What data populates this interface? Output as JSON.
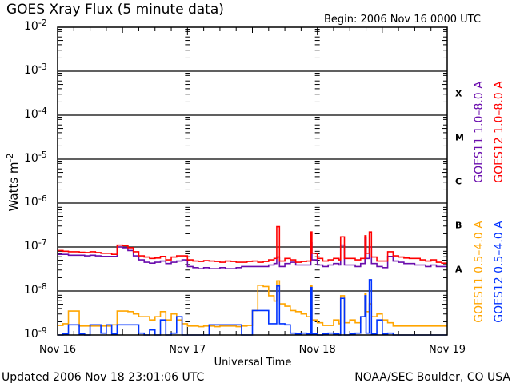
{
  "chart_data": {
    "type": "line",
    "title": "GOES Xray Flux (5 minute data)",
    "begin_label": "Begin:  2006 Nov 16 0000 UTC",
    "xlabel": "Universal Time",
    "ylabel": "Watts m",
    "ylabel_exp": "-2",
    "y_scale": "log",
    "ylim": [
      1e-09,
      0.01
    ],
    "xlim": [
      "Nov 16 00:00",
      "Nov 19 00:00"
    ],
    "grid": "horizontal lines at 1e-3 through 1e-8",
    "x_tick_labels": [
      "Nov 16",
      "Nov 17",
      "Nov 18",
      "Nov 19"
    ],
    "y_ticks": [
      {
        "base": "10",
        "exp": "-2"
      },
      {
        "base": "10",
        "exp": "-3"
      },
      {
        "base": "10",
        "exp": "-4"
      },
      {
        "base": "10",
        "exp": "-5"
      },
      {
        "base": "10",
        "exp": "-6"
      },
      {
        "base": "10",
        "exp": "-7"
      },
      {
        "base": "10",
        "exp": "-8"
      },
      {
        "base": "10",
        "exp": "-9"
      }
    ],
    "flare_classes": [
      "X",
      "M",
      "C",
      "B",
      "A"
    ],
    "x": [
      "Nov 16 00:00",
      "Nov 16 01:00",
      "Nov 16 02:00",
      "Nov 16 03:00",
      "Nov 16 04:00",
      "Nov 16 05:00",
      "Nov 16 06:00",
      "Nov 16 07:00",
      "Nov 16 08:00",
      "Nov 16 09:00",
      "Nov 16 10:00",
      "Nov 16 11:00",
      "Nov 16 12:00",
      "Nov 16 13:00",
      "Nov 16 14:00",
      "Nov 16 15:00",
      "Nov 16 16:00",
      "Nov 16 17:00",
      "Nov 16 18:00",
      "Nov 16 19:00",
      "Nov 16 20:00",
      "Nov 16 21:00",
      "Nov 16 22:00",
      "Nov 16 23:00",
      "Nov 17 00:00",
      "Nov 17 01:00",
      "Nov 17 02:00",
      "Nov 17 03:00",
      "Nov 17 04:00",
      "Nov 17 05:00",
      "Nov 17 06:00",
      "Nov 17 07:00",
      "Nov 17 08:00",
      "Nov 17 09:00",
      "Nov 17 10:00",
      "Nov 17 11:00",
      "Nov 17 12:00",
      "Nov 17 13:00",
      "Nov 17 14:00",
      "Nov 17 15:00",
      "Nov 17 16:00",
      "Nov 17 16:30",
      "Nov 17 17:00",
      "Nov 17 18:00",
      "Nov 17 19:00",
      "Nov 17 20:00",
      "Nov 17 21:00",
      "Nov 17 22:00",
      "Nov 17 22:48",
      "Nov 17 23:00",
      "Nov 18 00:00",
      "Nov 18 01:00",
      "Nov 18 02:00",
      "Nov 18 03:00",
      "Nov 18 04:00",
      "Nov 18 04:18",
      "Nov 18 05:00",
      "Nov 18 06:00",
      "Nov 18 07:00",
      "Nov 18 08:00",
      "Nov 18 08:48",
      "Nov 18 09:00",
      "Nov 18 09:36",
      "Nov 18 10:00",
      "Nov 18 11:00",
      "Nov 18 12:00",
      "Nov 18 13:00",
      "Nov 18 14:00",
      "Nov 18 15:00",
      "Nov 18 16:00",
      "Nov 18 17:00",
      "Nov 18 18:00",
      "Nov 18 19:00",
      "Nov 18 20:00",
      "Nov 18 21:00",
      "Nov 18 22:00",
      "Nov 18 23:00"
    ],
    "series": [
      {
        "name": "GOES11 1.0-8.0 A",
        "color": "#6a0dad",
        "values": [
          6.8e-08,
          6.8e-08,
          6.5e-08,
          6.5e-08,
          6.5e-08,
          6.3e-08,
          6.5e-08,
          6.3e-08,
          6.1e-08,
          6.1e-08,
          6.1e-08,
          1e-07,
          9.6e-08,
          8.3e-08,
          6.3e-08,
          5.1e-08,
          4.5e-08,
          4.3e-08,
          4.5e-08,
          4.8e-08,
          4.2e-08,
          4.5e-08,
          4.8e-08,
          5.1e-08,
          3.6e-08,
          3.4e-08,
          3.2e-08,
          3.4e-08,
          3.2e-08,
          3.2e-08,
          3.4e-08,
          3.2e-08,
          3.2e-08,
          3.4e-08,
          3.6e-08,
          3.6e-08,
          3.6e-08,
          3.6e-08,
          3.6e-08,
          3.9e-08,
          4.2e-08,
          5.9e-08,
          3.6e-08,
          4.2e-08,
          4.5e-08,
          3.9e-08,
          3.9e-08,
          3.9e-08,
          1.25e-07,
          5.1e-08,
          3.9e-08,
          3.6e-08,
          3.9e-08,
          4.2e-08,
          3.9e-08,
          1.1e-07,
          3.9e-08,
          3.9e-08,
          3.6e-08,
          4.2e-08,
          1.6e-07,
          5.5e-08,
          1e-07,
          4.2e-08,
          3.6e-08,
          3.4e-08,
          6.1e-08,
          4.8e-08,
          4.5e-08,
          4.2e-08,
          4.2e-08,
          3.9e-08,
          3.9e-08,
          3.6e-08,
          3.9e-08,
          3.6e-08,
          3.6e-08
        ]
      },
      {
        "name": "GOES12 1.0-8.0 A",
        "color": "#ff0000",
        "values": [
          8.3e-08,
          8e-08,
          7.8e-08,
          7.8e-08,
          7.6e-08,
          7.5e-08,
          7.8e-08,
          7.5e-08,
          7.2e-08,
          7.2e-08,
          6.8e-08,
          1.1e-07,
          1.07e-07,
          9.6e-08,
          7.8e-08,
          6.3e-08,
          5.9e-08,
          5.5e-08,
          5.6e-08,
          6.1e-08,
          5.1e-08,
          5.9e-08,
          6.3e-08,
          6.3e-08,
          5.1e-08,
          4.8e-08,
          4.7e-08,
          4.9e-08,
          4.8e-08,
          4.7e-08,
          4.5e-08,
          4.8e-08,
          4.7e-08,
          4.5e-08,
          4.5e-08,
          4.7e-08,
          4.8e-08,
          4.5e-08,
          4.7e-08,
          5.1e-08,
          5.5e-08,
          2.9e-07,
          4.8e-08,
          5.5e-08,
          5.1e-08,
          4.5e-08,
          4.7e-08,
          4.8e-08,
          2.2e-07,
          7.2e-08,
          5.5e-08,
          4.8e-08,
          5.1e-08,
          5.5e-08,
          5.1e-08,
          1.7e-07,
          5.5e-08,
          5.5e-08,
          5.1e-08,
          5.5e-08,
          1.8e-07,
          7.2e-08,
          2.2e-07,
          5.9e-08,
          4.8e-08,
          4.8e-08,
          7.8e-08,
          6.3e-08,
          5.9e-08,
          5.6e-08,
          5.5e-08,
          5.5e-08,
          5.1e-08,
          4.8e-08,
          5.1e-08,
          4.5e-08,
          4.3e-08
        ]
      },
      {
        "name": "GOES11 0.5-4.0 A",
        "color": "#ffa500",
        "values": [
          1.65e-09,
          1.8e-09,
          3.5e-09,
          3.5e-09,
          1.6e-09,
          1.6e-09,
          1.6e-09,
          1.6e-09,
          1.6e-09,
          1.6e-09,
          1.7e-09,
          3.5e-09,
          3.5e-09,
          3.4e-09,
          3e-09,
          2.6e-09,
          2.6e-09,
          2.2e-09,
          2.6e-09,
          3.4e-09,
          2.2e-09,
          3e-09,
          2.2e-09,
          1.8e-09,
          1.6e-09,
          1.6e-09,
          1.55e-09,
          1.6e-09,
          1.6e-09,
          1.55e-09,
          1.6e-09,
          1.6e-09,
          1.6e-09,
          1.55e-09,
          1.6e-09,
          1.65e-09,
          3.6e-09,
          1.35e-08,
          1.26e-08,
          7.8e-09,
          5.9e-09,
          1.7e-08,
          5.1e-09,
          4.5e-09,
          3.6e-09,
          3.4e-09,
          3e-09,
          2.6e-09,
          1.3e-08,
          2.2e-09,
          1.9e-09,
          1.65e-09,
          1.65e-09,
          2.2e-09,
          1.8e-09,
          7.8e-09,
          1.9e-09,
          2.2e-09,
          1.9e-09,
          2.6e-09,
          8.9e-09,
          3.4e-09,
          5.1e-09,
          2.6e-09,
          3e-09,
          2.2e-09,
          1.9e-09,
          1.6e-09,
          1.6e-09,
          1.6e-09,
          1.6e-09,
          1.6e-09,
          1.6e-09,
          1.6e-09,
          1.6e-09,
          1.6e-09,
          1.6e-09
        ]
      },
      {
        "name": "GOES12 0.5-4.0 A",
        "color": "#0033ff",
        "values": [
          1e-09,
          1.05e-09,
          1.7e-09,
          1.7e-09,
          1.05e-09,
          1e-09,
          1.7e-09,
          1.7e-09,
          1.1e-09,
          1.7e-09,
          1.05e-09,
          1.7e-09,
          1.7e-09,
          1.7e-09,
          1.7e-09,
          1.1e-09,
          1e-09,
          1.3e-09,
          1e-09,
          2.2e-09,
          1e-09,
          1.1e-09,
          2.6e-09,
          1e-09,
          1e-09,
          1e-09,
          1e-09,
          1e-09,
          1.7e-09,
          1.7e-09,
          1.7e-09,
          1.7e-09,
          1.7e-09,
          1.7e-09,
          1e-09,
          1e-09,
          3.6e-09,
          3.6e-09,
          3.6e-09,
          1.8e-09,
          1.8e-09,
          1.3e-08,
          1.8e-09,
          1.7e-09,
          1.1e-09,
          1.05e-09,
          1.1e-09,
          1.05e-09,
          1.2e-08,
          1.05e-09,
          1e-09,
          1.05e-09,
          1.1e-09,
          1.05e-09,
          1e-09,
          6.8e-09,
          1e-09,
          1.05e-09,
          1.1e-09,
          2.6e-09,
          7.8e-09,
          1.1e-09,
          1.8e-08,
          1.05e-09,
          2.2e-09,
          1.05e-09,
          1.1e-09,
          1e-09,
          1e-09,
          1e-09,
          1e-09,
          1e-09,
          1e-09,
          1e-09,
          1e-09,
          1e-09,
          1e-09
        ]
      }
    ],
    "legend": [
      "GOES11 1.0–8.0 A",
      "GOES12 1.0–8.0 A",
      "GOES11 0.5–4.0 A",
      "GOES12 0.5–4.0 A"
    ],
    "legend_placement": "right, vertical"
  },
  "footer": {
    "updated": "Updated 2006 Nov 18 23:01:06 UTC",
    "source": "NOAA/SEC Boulder, CO USA"
  }
}
